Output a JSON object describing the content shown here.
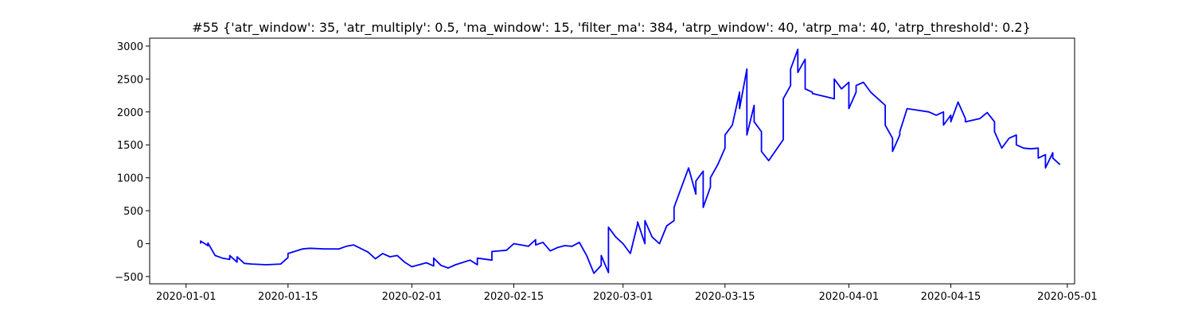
{
  "chart_data": {
    "type": "line",
    "title": "#55 {'atr_window': 35, 'atr_multiply': 0.5, 'ma_window': 15, 'filter_ma': 384, 'atrp_window': 40, 'atrp_ma': 40, 'atrp_threshold': 0.2}",
    "xlabel": "",
    "ylabel": "",
    "grid": false,
    "xlim": [
      "2019-12-27",
      "2020-05-02"
    ],
    "ylim": [
      -610,
      3120
    ],
    "x_ticks": [
      "2020-01-01",
      "2020-01-15",
      "2020-02-01",
      "2020-02-15",
      "2020-03-01",
      "2020-03-15",
      "2020-04-01",
      "2020-04-15",
      "2020-05-01"
    ],
    "y_ticks": [
      -500,
      0,
      500,
      1000,
      1500,
      2000,
      2500,
      3000
    ],
    "series": [
      {
        "color": "#0000ff",
        "x": [
          "2020-01-03",
          "2020-01-03",
          "2020-01-04",
          "2020-01-04",
          "2020-01-05",
          "2020-01-06",
          "2020-01-07",
          "2020-01-07",
          "2020-01-08",
          "2020-01-08",
          "2020-01-09",
          "2020-01-10",
          "2020-01-12",
          "2020-01-14",
          "2020-01-15",
          "2020-01-15",
          "2020-01-17",
          "2020-01-18",
          "2020-01-20",
          "2020-01-22",
          "2020-01-23",
          "2020-01-24",
          "2020-01-26",
          "2020-01-27",
          "2020-01-28",
          "2020-01-29",
          "2020-01-30",
          "2020-01-31",
          "2020-02-01",
          "2020-02-03",
          "2020-02-04",
          "2020-02-04",
          "2020-02-05",
          "2020-02-06",
          "2020-02-07",
          "2020-02-09",
          "2020-02-10",
          "2020-02-10",
          "2020-02-12",
          "2020-02-12",
          "2020-02-14",
          "2020-02-15",
          "2020-02-17",
          "2020-02-18",
          "2020-02-18",
          "2020-02-19",
          "2020-02-20",
          "2020-02-21",
          "2020-02-22",
          "2020-02-23",
          "2020-02-24",
          "2020-02-25",
          "2020-02-26",
          "2020-02-27",
          "2020-02-27",
          "2020-02-28",
          "2020-02-28",
          "2020-02-29",
          "2020-03-01",
          "2020-03-02",
          "2020-03-03",
          "2020-03-03",
          "2020-03-04",
          "2020-03-04",
          "2020-03-05",
          "2020-03-06",
          "2020-03-07",
          "2020-03-08",
          "2020-03-08",
          "2020-03-09",
          "2020-03-10",
          "2020-03-11",
          "2020-03-11",
          "2020-03-12",
          "2020-03-12",
          "2020-03-13",
          "2020-03-13",
          "2020-03-14",
          "2020-03-15",
          "2020-03-15",
          "2020-03-16",
          "2020-03-17",
          "2020-03-17",
          "2020-03-18",
          "2020-03-18",
          "2020-03-19",
          "2020-03-19",
          "2020-03-20",
          "2020-03-20",
          "2020-03-21",
          "2020-03-23",
          "2020-03-23",
          "2020-03-24",
          "2020-03-24",
          "2020-03-25",
          "2020-03-25",
          "2020-03-26",
          "2020-03-26",
          "2020-03-27",
          "2020-03-27",
          "2020-03-30",
          "2020-03-30",
          "2020-03-31",
          "2020-04-01",
          "2020-04-01",
          "2020-04-02",
          "2020-04-02",
          "2020-04-03",
          "2020-04-04",
          "2020-04-06",
          "2020-04-06",
          "2020-04-07",
          "2020-04-07",
          "2020-04-08",
          "2020-04-08",
          "2020-04-09",
          "2020-04-12",
          "2020-04-13",
          "2020-04-14",
          "2020-04-14",
          "2020-04-15",
          "2020-04-15",
          "2020-04-16",
          "2020-04-17",
          "2020-04-17",
          "2020-04-19",
          "2020-04-20",
          "2020-04-21",
          "2020-04-21",
          "2020-04-22",
          "2020-04-23",
          "2020-04-24",
          "2020-04-24",
          "2020-04-25",
          "2020-04-26",
          "2020-04-27",
          "2020-04-27",
          "2020-04-28",
          "2020-04-28",
          "2020-04-29",
          "2020-04-29",
          "2020-04-30"
        ],
        "y": [
          0,
          40,
          -30,
          10,
          -180,
          -220,
          -240,
          -180,
          -280,
          -200,
          -300,
          -310,
          -320,
          -310,
          -210,
          -150,
          -80,
          -70,
          -80,
          -80,
          -40,
          -20,
          -130,
          -230,
          -150,
          -200,
          -180,
          -280,
          -350,
          -290,
          -340,
          -220,
          -330,
          -370,
          -320,
          -250,
          -320,
          -220,
          -250,
          -120,
          -100,
          0,
          -40,
          60,
          -20,
          20,
          -110,
          -60,
          -30,
          -40,
          20,
          -180,
          -450,
          -330,
          -180,
          -440,
          250,
          100,
          0,
          -150,
          300,
          330,
          0,
          350,
          100,
          0,
          270,
          350,
          550,
          850,
          1150,
          750,
          950,
          1100,
          550,
          860,
          1000,
          1200,
          1450,
          1650,
          1800,
          2300,
          2050,
          2650,
          1650,
          2100,
          1850,
          1700,
          1400,
          1260,
          1580,
          2200,
          2400,
          2650,
          2950,
          2600,
          2800,
          2350,
          2300,
          2280,
          2200,
          2500,
          2350,
          2450,
          2050,
          2300,
          2400,
          2450,
          2300,
          2100,
          1800,
          1600,
          1400,
          1650,
          1700,
          2050,
          2000,
          1950,
          2000,
          1800,
          1950,
          1850,
          2150,
          1900,
          1850,
          1900,
          1990,
          1850,
          1700,
          1450,
          1600,
          1650,
          1500,
          1450,
          1440,
          1450,
          1300,
          1350,
          1150,
          1380,
          1300,
          1200
        ]
      }
    ]
  }
}
